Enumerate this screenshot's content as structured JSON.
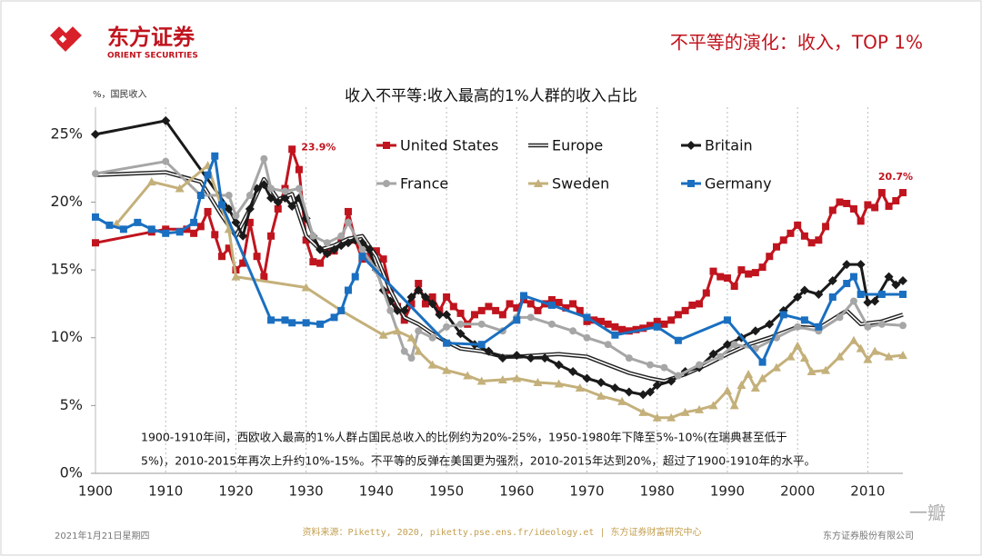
{
  "header": {
    "logo_cn": "东方证券",
    "logo_en": "ORIENT SECURITIES",
    "title": "不平等的演化：收入，TOP 1%"
  },
  "chart_data": {
    "type": "line",
    "title": "收入不平等:收入最高的1%人群的收入占比",
    "y_label": "%，国民收入",
    "xlim": [
      1900,
      2015
    ],
    "xticks": [
      1900,
      1910,
      1920,
      1930,
      1940,
      1950,
      1960,
      1970,
      1980,
      1990,
      2000,
      2010
    ],
    "ylim": [
      0,
      27
    ],
    "yticks": [
      {
        "value": 0,
        "label": "0%"
      },
      {
        "value": 5,
        "label": "5%"
      },
      {
        "value": 10,
        "label": "10%"
      },
      {
        "value": 15,
        "label": "15%"
      },
      {
        "value": 20,
        "label": "20%"
      },
      {
        "value": 25,
        "label": "25%"
      }
    ],
    "grid": "x",
    "legend": "upper center",
    "series": [
      {
        "name": "United States",
        "color": "#c0141e",
        "marker": "square",
        "x": [
          1900,
          1908,
          1910,
          1913,
          1914,
          1915,
          1916,
          1917,
          1918,
          1919,
          1920,
          1921,
          1922,
          1923,
          1924,
          1925,
          1926,
          1927,
          1928,
          1929,
          1930,
          1931,
          1932,
          1933,
          1934,
          1935,
          1936,
          1937,
          1938,
          1939,
          1940,
          1941,
          1942,
          1943,
          1944,
          1945,
          1946,
          1947,
          1948,
          1949,
          1950,
          1951,
          1952,
          1953,
          1954,
          1955,
          1956,
          1957,
          1958,
          1959,
          1960,
          1961,
          1962,
          1963,
          1964,
          1965,
          1966,
          1967,
          1968,
          1969,
          1970,
          1971,
          1972,
          1973,
          1974,
          1975,
          1976,
          1977,
          1978,
          1979,
          1980,
          1981,
          1982,
          1983,
          1984,
          1985,
          1986,
          1987,
          1988,
          1989,
          1990,
          1991,
          1992,
          1993,
          1994,
          1995,
          1996,
          1997,
          1998,
          1999,
          2000,
          2001,
          2002,
          2003,
          2004,
          2005,
          2006,
          2007,
          2008,
          2009,
          2010,
          2011,
          2012,
          2013,
          2014,
          2015
        ],
        "values": [
          17.0,
          17.8,
          18.0,
          18.0,
          17.7,
          18.2,
          19.3,
          17.6,
          16.0,
          16.6,
          15.0,
          15.5,
          18.5,
          16.0,
          14.5,
          17.5,
          19.5,
          21.0,
          23.9,
          22.4,
          17.2,
          15.6,
          15.5,
          16.3,
          16.4,
          17.0,
          19.3,
          17.2,
          15.8,
          16.0,
          16.4,
          15.8,
          13.5,
          12.3,
          11.3,
          12.5,
          14.0,
          12.5,
          13.0,
          12.0,
          13.0,
          12.3,
          11.8,
          11.0,
          11.7,
          12.0,
          12.3,
          12.0,
          11.7,
          12.5,
          12.2,
          12.8,
          12.5,
          12.0,
          12.5,
          12.8,
          12.6,
          12.2,
          12.5,
          12.0,
          11.2,
          11.3,
          11.2,
          11.0,
          10.8,
          10.6,
          10.5,
          10.6,
          10.7,
          10.9,
          11.2,
          11.0,
          11.3,
          11.7,
          12.0,
          12.4,
          12.5,
          13.3,
          14.9,
          14.5,
          14.4,
          13.8,
          15.0,
          14.7,
          14.8,
          15.2,
          16.0,
          16.7,
          17.2,
          17.7,
          18.3,
          17.5,
          17.0,
          17.2,
          18.2,
          19.4,
          20.0,
          19.9,
          19.5,
          18.6,
          19.8,
          19.6,
          20.7,
          19.7,
          20.1,
          20.7
        ]
      },
      {
        "name": "Europe",
        "color": "#222222",
        "marker": "none",
        "double": true,
        "x": [
          1900,
          1910,
          1915,
          1918,
          1920,
          1922,
          1924,
          1926,
          1928,
          1930,
          1932,
          1934,
          1936,
          1938,
          1940,
          1942,
          1944,
          1946,
          1948,
          1950,
          1952,
          1955,
          1958,
          1960,
          1963,
          1966,
          1970,
          1973,
          1976,
          1979,
          1981,
          1984,
          1987,
          1990,
          1993,
          1996,
          2000,
          2003,
          2007,
          2009,
          2012,
          2015
        ],
        "values": [
          22.0,
          22.2,
          21.5,
          19.0,
          17.5,
          19.5,
          21.7,
          20.2,
          20.6,
          17.5,
          16.5,
          16.8,
          17.3,
          17.5,
          16.0,
          13.5,
          11.5,
          11.0,
          10.3,
          9.7,
          9.2,
          9.0,
          8.6,
          8.6,
          8.7,
          8.8,
          8.6,
          8.0,
          7.4,
          7.0,
          6.8,
          7.3,
          8.0,
          8.8,
          9.5,
          10.0,
          10.8,
          10.7,
          12.0,
          11.0,
          11.2,
          11.7
        ]
      },
      {
        "name": "Britain",
        "color": "#1a1a1a",
        "marker": "diamond",
        "x": [
          1900,
          1910,
          1919,
          1920,
          1921,
          1922,
          1923,
          1924,
          1925,
          1926,
          1927,
          1928,
          1929,
          1930,
          1931,
          1932,
          1933,
          1934,
          1935,
          1936,
          1937,
          1938,
          1939,
          1940,
          1941,
          1942,
          1943,
          1944,
          1945,
          1946,
          1947,
          1948,
          1949,
          1950,
          1952,
          1954,
          1956,
          1958,
          1960,
          1962,
          1964,
          1966,
          1968,
          1970,
          1972,
          1974,
          1976,
          1978,
          1979,
          1980,
          1982,
          1984,
          1986,
          1988,
          1990,
          1992,
          1994,
          1996,
          1998,
          2000,
          2001,
          2003,
          2005,
          2007,
          2009,
          2010,
          2011,
          2013,
          2014,
          2015
        ],
        "values": [
          25.0,
          26.0,
          19.5,
          18.5,
          17.5,
          19.5,
          21.0,
          21.3,
          20.3,
          20.0,
          20.3,
          19.7,
          20.3,
          18.8,
          17.5,
          16.5,
          16.2,
          16.5,
          16.8,
          17.0,
          17.2,
          17.0,
          16.5,
          15.0,
          13.5,
          12.7,
          12.0,
          12.0,
          13.0,
          13.5,
          13.0,
          12.5,
          11.7,
          11.7,
          10.3,
          9.5,
          9.0,
          8.5,
          8.7,
          8.5,
          8.5,
          8.0,
          7.5,
          7.0,
          6.7,
          6.3,
          6.0,
          5.8,
          6.0,
          6.5,
          6.8,
          7.5,
          7.8,
          8.8,
          9.5,
          10.0,
          10.5,
          11.0,
          12.0,
          13.0,
          13.5,
          13.2,
          14.2,
          15.4,
          15.4,
          12.6,
          12.7,
          14.5,
          13.9,
          14.2
        ]
      },
      {
        "name": "France",
        "color": "#a6a6a6",
        "marker": "circle",
        "x": [
          1900,
          1910,
          1915,
          1919,
          1920,
          1922,
          1924,
          1925,
          1927,
          1929,
          1931,
          1933,
          1935,
          1936,
          1938,
          1940,
          1942,
          1944,
          1945,
          1946,
          1948,
          1950,
          1952,
          1955,
          1958,
          1960,
          1962,
          1965,
          1968,
          1970,
          1973,
          1976,
          1979,
          1981,
          1983,
          1986,
          1989,
          1991,
          1994,
          1997,
          2000,
          2003,
          2006,
          2008,
          2010,
          2012,
          2015
        ],
        "values": [
          22.1,
          23.0,
          20.5,
          20.5,
          19.0,
          20.5,
          23.2,
          21.0,
          20.8,
          21.0,
          17.5,
          17.0,
          17.5,
          18.5,
          16.5,
          15.0,
          12.0,
          9.0,
          8.5,
          10.5,
          10.0,
          10.8,
          11.0,
          11.0,
          10.5,
          11.5,
          11.5,
          11.0,
          10.5,
          10.0,
          9.5,
          8.5,
          8.0,
          7.8,
          7.2,
          8.0,
          8.6,
          9.5,
          9.2,
          10.0,
          10.8,
          10.5,
          11.5,
          12.7,
          10.8,
          11.0,
          10.9
        ]
      },
      {
        "name": "Sweden",
        "color": "#c4b07a",
        "marker": "triangle",
        "x": [
          1903,
          1908,
          1912,
          1916,
          1919,
          1920,
          1930,
          1935,
          1941,
          1943,
          1945,
          1946,
          1948,
          1950,
          1953,
          1955,
          1958,
          1960,
          1963,
          1966,
          1969,
          1972,
          1975,
          1978,
          1980,
          1982,
          1984,
          1986,
          1988,
          1990,
          1991,
          1992,
          1993,
          1994,
          1995,
          1997,
          1999,
          2000,
          2001,
          2002,
          2004,
          2006,
          2008,
          2009,
          2010,
          2011,
          2013,
          2015
        ],
        "values": [
          18.4,
          21.5,
          21.0,
          22.7,
          18.0,
          14.5,
          13.7,
          12.0,
          10.2,
          10.5,
          10.0,
          9.0,
          8.0,
          7.6,
          7.2,
          6.8,
          6.9,
          7.0,
          6.7,
          6.6,
          6.3,
          5.7,
          5.3,
          4.5,
          4.1,
          4.1,
          4.5,
          4.7,
          5.0,
          6.1,
          5.0,
          6.5,
          7.3,
          6.3,
          7.0,
          7.8,
          8.6,
          9.4,
          8.5,
          7.5,
          7.6,
          8.6,
          9.8,
          9.2,
          8.4,
          9.0,
          8.6,
          8.7
        ]
      },
      {
        "name": "Germany",
        "color": "#1a6fc0",
        "marker": "square",
        "x": [
          1900,
          1902,
          1904,
          1906,
          1908,
          1910,
          1912,
          1914,
          1915,
          1916,
          1917,
          1918,
          1925,
          1927,
          1928,
          1930,
          1932,
          1934,
          1935,
          1936,
          1937,
          1938,
          1950,
          1955,
          1960,
          1961,
          1965,
          1970,
          1974,
          1980,
          1983,
          1990,
          1995,
          1998,
          2001,
          2003,
          2005,
          2007,
          2008,
          2009,
          2012,
          2015
        ],
        "values": [
          18.9,
          18.3,
          18.0,
          18.5,
          18.0,
          17.7,
          17.8,
          18.5,
          20.5,
          22.0,
          23.4,
          19.8,
          11.3,
          11.3,
          11.1,
          11.1,
          11.0,
          11.5,
          12.0,
          13.5,
          14.5,
          16.0,
          9.6,
          9.5,
          11.3,
          13.1,
          12.4,
          11.5,
          10.2,
          10.8,
          9.8,
          11.3,
          8.2,
          11.7,
          11.3,
          10.8,
          13.0,
          14.0,
          14.5,
          13.2,
          13.2,
          13.2
        ]
      }
    ],
    "annotations": [
      {
        "x": 1928,
        "y": 23.9,
        "label": "23.9%",
        "color": "#c0141e"
      },
      {
        "x": 2015,
        "y": 20.7,
        "label": "20.7%",
        "color": "#c0141e"
      }
    ],
    "note": [
      "1900-1910年间，西欧收入最高的1%人群占国民总收入的比例约为20%-25%，1950-1980年下降至5%-10%(在瑞典甚至低于",
      "5%)，2010-2015年再次上升约10%-15%。不平等的反弹在美国更为强烈，2010-2015年达到20%，超过了1900-1910年的水平。"
    ]
  },
  "footer": {
    "date": "2021年1月21日星期四",
    "source": "资料来源：Piketty, 2020, piketty.pse.ens.fr/ideology.et | 东方证券财富研究中心",
    "company": "东方证券股份有限公司",
    "watermark": "一瓣"
  }
}
